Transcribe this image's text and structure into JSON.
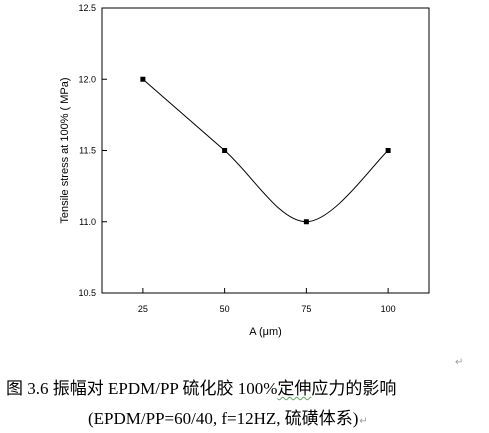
{
  "chart_data": {
    "type": "line",
    "xlabel": "A (μm)",
    "ylabel": "Tensile stress at 100% ( MPa)",
    "x_ticks": [
      "25",
      "50",
      "75",
      "100"
    ],
    "y_ticks": [
      "10.5",
      "11.0",
      "11.5",
      "12.0",
      "12.5"
    ],
    "xlim": [
      12.5,
      112.5
    ],
    "ylim": [
      10.5,
      12.5
    ],
    "grid": false,
    "marker": "square",
    "line": "smooth",
    "colors": {
      "line": "#000000",
      "marker": "#000000"
    },
    "series": [
      {
        "x": [
          25,
          50,
          75,
          100
        ],
        "y": [
          12.0,
          11.5,
          11.0,
          11.5
        ]
      }
    ]
  },
  "caption": {
    "line1_prefix": "图 3.6  振幅对 EPDM/PP 硫化胶 100%",
    "line1_underlined": "定伸",
    "line1_suffix": "应力的影响",
    "line2": "(EPDM/PP=60/40, f=12HZ,  硫磺体系)",
    "return_mark": "↵"
  }
}
